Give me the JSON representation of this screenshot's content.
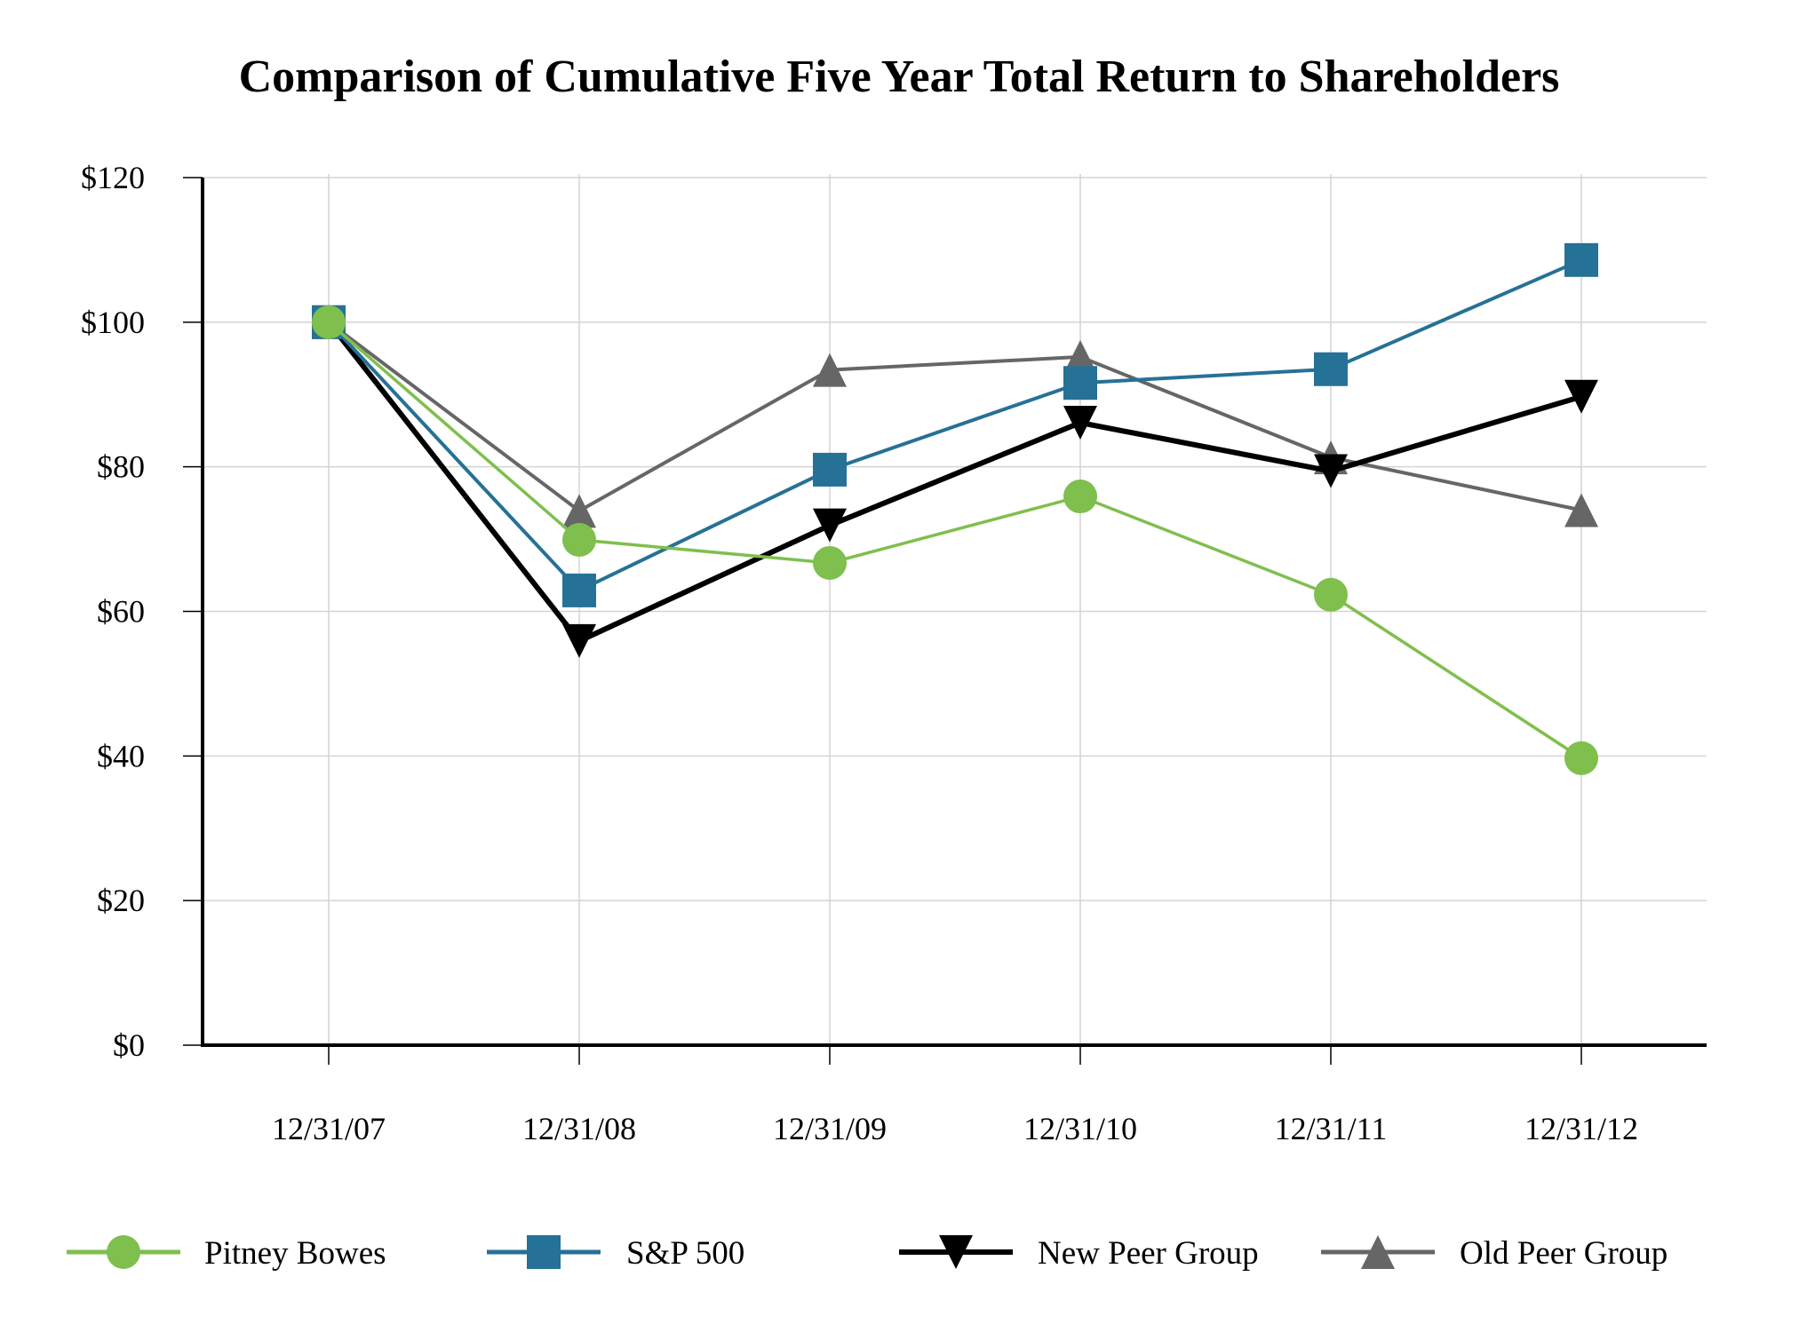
{
  "chart_data": {
    "type": "line",
    "title": "Comparison of Cumulative Five Year Total Return to Shareholders",
    "xlabel": "",
    "ylabel": "",
    "categories": [
      "12/31/07",
      "12/31/08",
      "12/31/09",
      "12/31/10",
      "12/31/11",
      "12/31/12"
    ],
    "ylim": [
      0,
      120
    ],
    "yticks": [
      0,
      20,
      40,
      60,
      80,
      100,
      120
    ],
    "ytick_labels": [
      "$0",
      "$20",
      "$40",
      "$60",
      "$80",
      "$100",
      "$120"
    ],
    "grid": true,
    "legend_position": "bottom",
    "series": [
      {
        "name": "Pitney Bowes",
        "color": "#7fbf4d",
        "marker": "circle",
        "values": [
          100,
          69.9,
          66.7,
          75.9,
          62.3,
          39.7
        ]
      },
      {
        "name": "S&P 500",
        "color": "#267196",
        "marker": "square",
        "values": [
          100,
          62.9,
          79.6,
          91.6,
          93.5,
          108.6
        ]
      },
      {
        "name": "New Peer Group",
        "color": "#000000",
        "marker": "triangle-down",
        "values": [
          100,
          55.9,
          71.9,
          86.1,
          79.4,
          89.7
        ]
      },
      {
        "name": "Old Peer Group",
        "color": "#666666",
        "marker": "triangle-up",
        "values": [
          100,
          73.9,
          93.4,
          95.2,
          81.3,
          74.0
        ]
      }
    ]
  }
}
